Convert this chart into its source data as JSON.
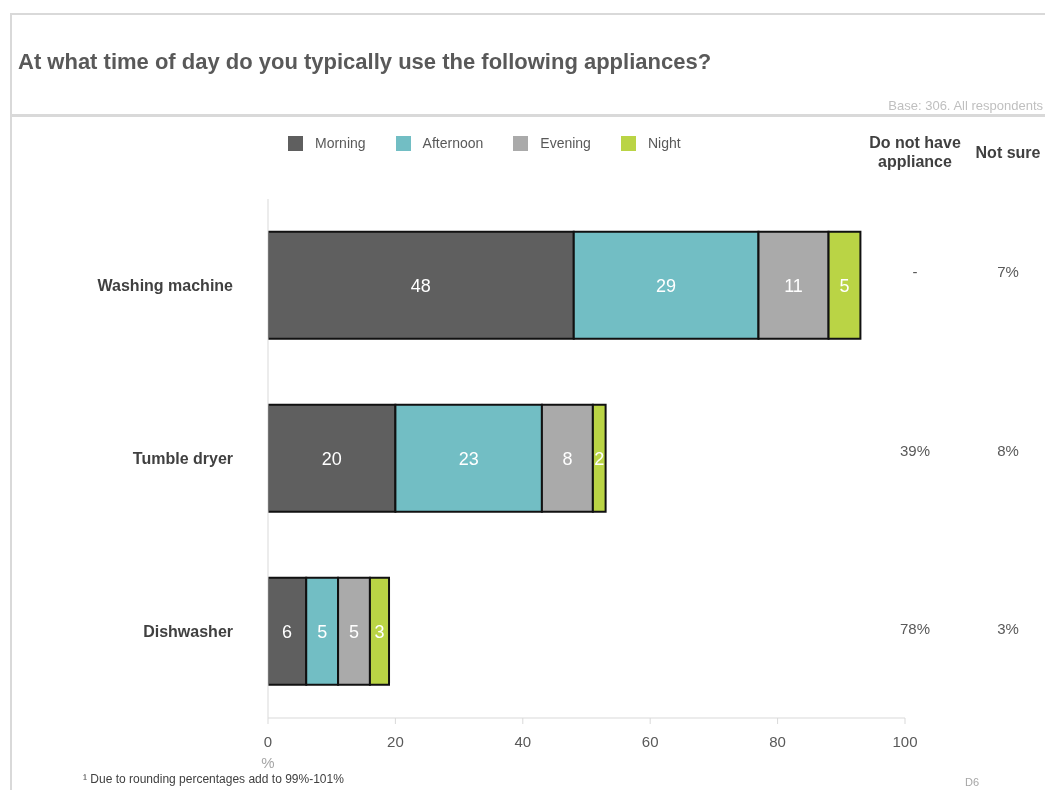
{
  "chart_data": {
    "type": "bar",
    "orientation": "horizontal",
    "stacked": true,
    "title": "At what time of day do you typically use the following appliances?",
    "xlabel": "%",
    "categories": [
      "Washing machine",
      "Tumble dryer",
      "Dishwasher"
    ],
    "series": [
      {
        "name": "Morning",
        "color": "#5f5f5f",
        "values": [
          48,
          20,
          6
        ]
      },
      {
        "name": "Afternoon",
        "color": "#72bec4",
        "values": [
          29,
          23,
          5
        ]
      },
      {
        "name": "Evening",
        "color": "#aaaaaa",
        "values": [
          11,
          8,
          5
        ]
      },
      {
        "name": "Night",
        "color": "#bad445",
        "values": [
          5,
          2,
          3
        ]
      }
    ],
    "xlim": [
      0,
      100
    ],
    "xticks": [
      0,
      20,
      40,
      60,
      80,
      100
    ],
    "data_labels": true,
    "legend": "top",
    "annotations": [
      "Do not have appliance",
      "Not sure",
      "-",
      "7%",
      "39%",
      "8%",
      "78%",
      "3%",
      "Base: 306. All respondents",
      "¹ Due to rounding percentages add to 99%-101%",
      "D6"
    ]
  }
}
